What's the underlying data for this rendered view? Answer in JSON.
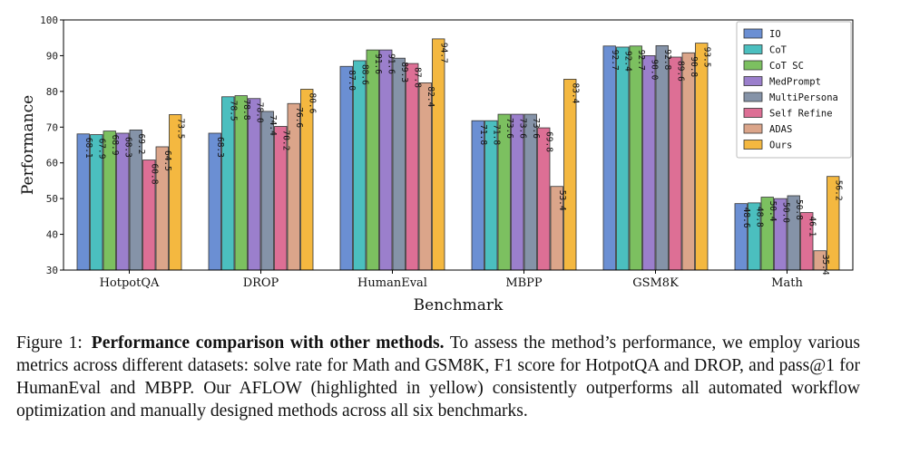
{
  "chart_data": {
    "type": "bar",
    "xlabel": "Benchmark",
    "ylabel": "Performance",
    "ylim": [
      30,
      100
    ],
    "yticks": [
      30,
      40,
      50,
      60,
      70,
      80,
      90,
      100
    ],
    "categories": [
      "HotpotQA",
      "DROP",
      "HumanEval",
      "MBPP",
      "GSM8K",
      "Math"
    ],
    "legend_position": "top-right",
    "series": [
      {
        "name": "IO",
        "color": "#6b8fd3",
        "values": [
          68.1,
          68.3,
          87.0,
          71.8,
          92.7,
          48.6
        ]
      },
      {
        "name": "CoT",
        "color": "#4bbfbf",
        "values": [
          67.9,
          78.5,
          88.6,
          71.8,
          92.4,
          48.8
        ]
      },
      {
        "name": "CoT SC",
        "color": "#7cc060",
        "values": [
          68.9,
          78.8,
          91.6,
          73.6,
          92.7,
          50.4
        ]
      },
      {
        "name": "MedPrompt",
        "color": "#9b7fcc",
        "values": [
          68.3,
          78.0,
          91.6,
          73.6,
          90.0,
          50.0
        ]
      },
      {
        "name": "MultiPersona",
        "color": "#8593a8",
        "values": [
          69.2,
          74.4,
          89.3,
          73.6,
          92.8,
          50.8
        ]
      },
      {
        "name": "Self Refine",
        "color": "#dd6f95",
        "values": [
          60.8,
          70.2,
          87.8,
          69.8,
          89.6,
          46.1
        ]
      },
      {
        "name": "ADAS",
        "color": "#dba58a",
        "values": [
          64.5,
          76.6,
          82.4,
          53.4,
          90.8,
          35.4
        ]
      },
      {
        "name": "Ours",
        "color": "#f4b840",
        "values": [
          73.5,
          80.6,
          94.7,
          83.4,
          93.5,
          56.2
        ]
      }
    ],
    "value_labels": [
      [
        "68.1",
        "68.3",
        "87.0",
        "71.8",
        "92.7",
        "48.6"
      ],
      [
        "67.9",
        "78.5",
        "88.6",
        "71.8",
        "92.4",
        "48.8"
      ],
      [
        "68.9",
        "78.8",
        "91.6",
        "73.6",
        "92.7",
        "50.4"
      ],
      [
        "68.3",
        "78.0",
        "91.6",
        "73.6",
        "90.0",
        "50.0"
      ],
      [
        "69.2",
        "74.4",
        "89.3",
        "73.6",
        "92.8",
        "50.8"
      ],
      [
        "60.8",
        "70.2",
        "87.8",
        "69.8",
        "89.6",
        "46.1"
      ],
      [
        "64.5",
        "76.6",
        "82.4",
        "53.4",
        "90.8",
        "35.4"
      ],
      [
        "73.5",
        "80.6",
        "94.7",
        "83.4",
        "93.5",
        "56.2"
      ]
    ]
  },
  "caption": {
    "label": "Figure 1:",
    "bold": "Performance comparison with other methods.",
    "text": " To assess the method’s performance, we employ various metrics across different datasets: solve rate for Math and GSM8K, F1 score for HotpotQA and DROP, and pass@1 for HumanEval and MBPP. Our AFLOW (highlighted in yellow) consistently outperforms all automated workflow optimization and manually designed methods across all six benchmarks."
  }
}
